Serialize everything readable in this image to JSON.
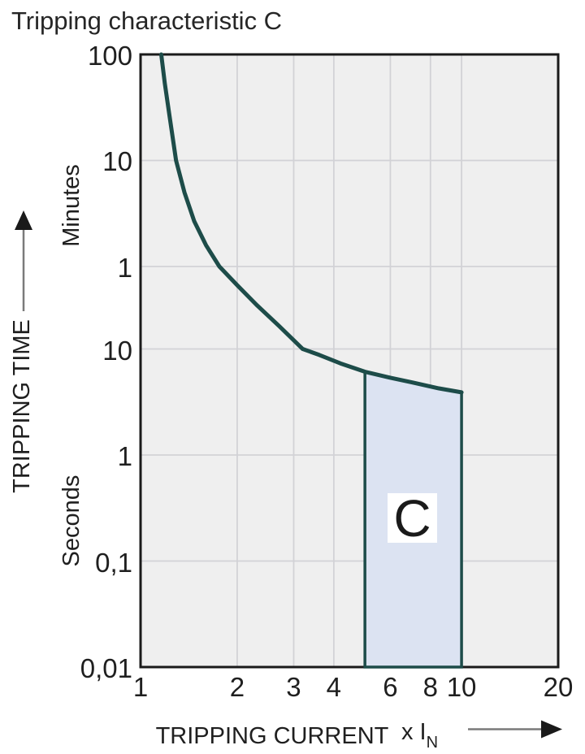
{
  "title": "Tripping characteristic C",
  "chart_data": {
    "type": "line",
    "title": "Tripping characteristic C",
    "x_axis": {
      "label": "TRIPPING CURRENT",
      "unit_prefix": "x I",
      "unit_sub": "N",
      "scale": "log",
      "range": [
        1,
        20
      ],
      "ticks": [
        {
          "label": "1",
          "value": 1
        },
        {
          "label": "2",
          "value": 2
        },
        {
          "label": "3",
          "value": 3
        },
        {
          "label": "4",
          "value": 4
        },
        {
          "label": "6",
          "value": 6
        },
        {
          "label": "8",
          "value": 8
        },
        {
          "label": "10",
          "value": 10
        },
        {
          "label": "20",
          "value": 20
        }
      ],
      "gridlines": [
        2,
        3,
        4,
        6,
        8,
        10
      ]
    },
    "y_axis": {
      "label": "TRIPPING TIME",
      "minutes_label": "Minutes",
      "seconds_label": "Seconds",
      "scale": "log",
      "range_seconds": [
        0.01,
        6000
      ],
      "ticks": [
        {
          "label": "100",
          "seconds": 6000,
          "unit": "minutes"
        },
        {
          "label": "10",
          "seconds": 600,
          "unit": "minutes"
        },
        {
          "label": "1",
          "seconds": 60,
          "unit": "minutes"
        },
        {
          "label": "10",
          "seconds": 10,
          "unit": "seconds"
        },
        {
          "label": "1",
          "seconds": 1,
          "unit": "seconds"
        },
        {
          "label": "0,1",
          "seconds": 0.1,
          "unit": "seconds"
        },
        {
          "label": "0,01",
          "seconds": 0.01,
          "unit": "seconds"
        }
      ],
      "gridlines_seconds": [
        600,
        60,
        10,
        1,
        0.1
      ]
    },
    "series": [
      {
        "name": "tripping-curve",
        "color": "#1d4c49",
        "points": [
          [
            1.16,
            6000
          ],
          [
            1.19,
            3200
          ],
          [
            1.23,
            1600
          ],
          [
            1.29,
            600
          ],
          [
            1.37,
            300
          ],
          [
            1.47,
            160
          ],
          [
            1.6,
            95
          ],
          [
            1.76,
            60
          ],
          [
            2.0,
            40
          ],
          [
            2.3,
            26
          ],
          [
            2.7,
            16.5
          ],
          [
            3.2,
            10.0
          ],
          [
            3.6,
            8.8
          ],
          [
            4.2,
            7.3
          ],
          [
            5.0,
            6.1
          ],
          [
            6.0,
            5.35
          ],
          [
            7.0,
            4.85
          ],
          [
            8.5,
            4.25
          ],
          [
            10,
            3.9
          ]
        ]
      }
    ],
    "region": {
      "label": "C",
      "x_range": [
        5,
        10
      ],
      "top_points": [
        [
          5,
          6.1
        ],
        [
          6,
          5.35
        ],
        [
          7,
          4.85
        ],
        [
          8.5,
          4.25
        ],
        [
          10,
          3.9
        ]
      ],
      "bottom_seconds": 0.01,
      "fill": "#dce3f2",
      "stroke": "#1d4c49"
    },
    "colors": {
      "plot_bg": "#efefef",
      "gridline": "#d2d2d6",
      "border": "#1a1a1a",
      "curve": "#1d4c49",
      "region_fill": "#dce3f2",
      "text": "#1f1f1f",
      "arrow_line": "#7a7a7a",
      "arrow_head": "#1a1a1a"
    }
  }
}
